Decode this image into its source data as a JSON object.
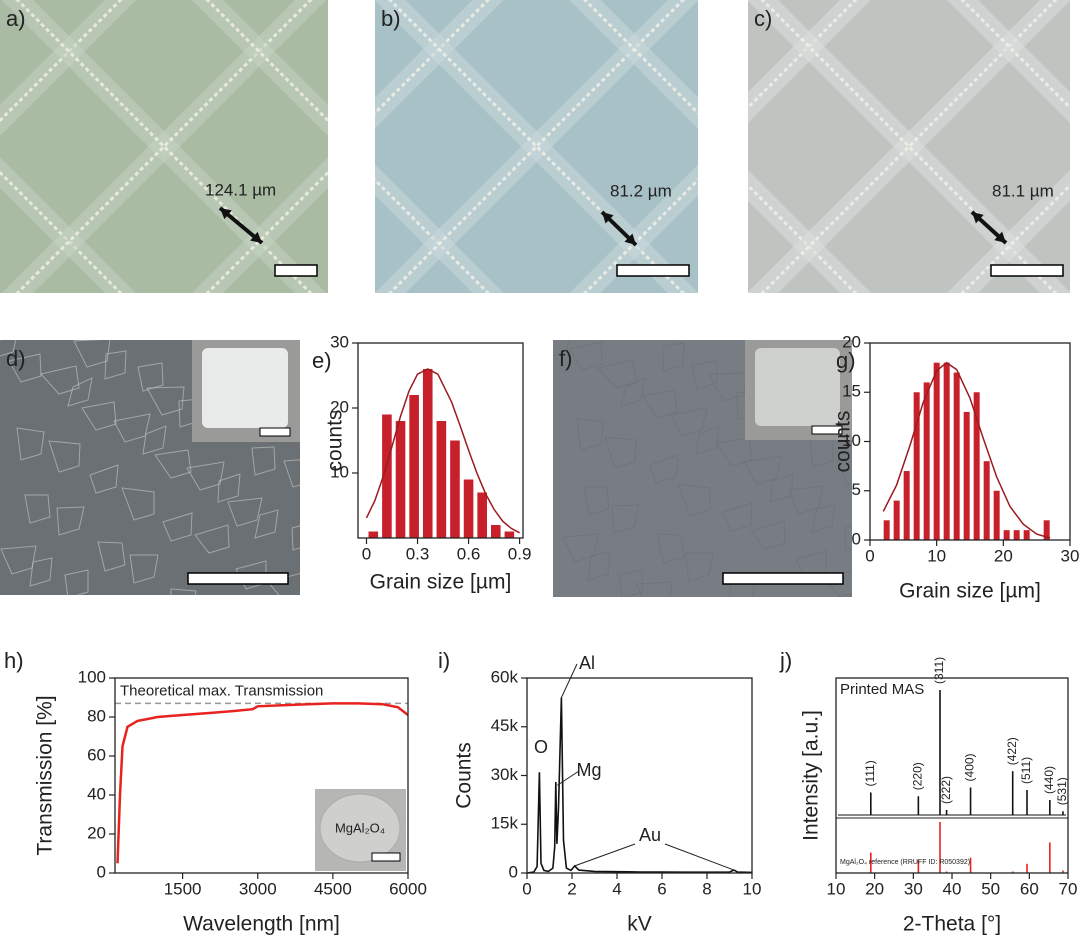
{
  "images": [
    {
      "label": "a)",
      "annotation": "124.1 µm"
    },
    {
      "label": "b)",
      "annotation": "81.2 µm"
    },
    {
      "label": "c)",
      "annotation": "81.1 µm"
    },
    {
      "label": "d)"
    },
    {
      "label": "f)"
    }
  ],
  "chart_data": [
    {
      "type": "histogram",
      "panel": "e)",
      "x_label": "Grain size [µm]",
      "y_label": "counts",
      "color": "#c8202a",
      "bins": [
        0,
        0.08,
        0.16,
        0.24,
        0.32,
        0.4,
        0.48,
        0.56,
        0.64,
        0.72,
        0.8,
        0.88
      ],
      "values": [
        1,
        19,
        18,
        22,
        26,
        18,
        15,
        9,
        7,
        2,
        1
      ],
      "curve": {
        "x": [
          0,
          0.05,
          0.1,
          0.15,
          0.2,
          0.25,
          0.3,
          0.36,
          0.42,
          0.5,
          0.55,
          0.6,
          0.65,
          0.7,
          0.75,
          0.8,
          0.85,
          0.9
        ],
        "values": [
          3.1,
          5.8,
          9.6,
          14.1,
          18.7,
          22.6,
          25.2,
          26,
          25.2,
          20.9,
          17.3,
          13.5,
          9.9,
          6.8,
          4.4,
          2.6,
          1.5,
          0.8
        ]
      },
      "xlim": [
        -0.05,
        0.92
      ],
      "xticks": [
        0,
        0.3,
        0.6,
        0.9
      ],
      "ylim": [
        0,
        30
      ],
      "yticks": [
        10,
        20,
        30
      ]
    },
    {
      "type": "histogram",
      "panel": "g)",
      "x_label": "Grain size [µm]",
      "y_label": "counts",
      "color": "#c8202a",
      "bins": [
        1.75,
        3.25,
        4.75,
        6.25,
        7.75,
        9.25,
        10.75,
        12.25,
        13.75,
        15.25,
        16.75,
        18.25,
        19.75,
        21.25,
        22.75,
        24.25,
        25.75,
        27.25
      ],
      "values": [
        2,
        4,
        7,
        15,
        16,
        18,
        18,
        17,
        13,
        15,
        8,
        5,
        1,
        1,
        1,
        0,
        2
      ],
      "curve": {
        "x": [
          2,
          4,
          6,
          8,
          10,
          11.5,
          13,
          15,
          17,
          19,
          21,
          23,
          25,
          27
        ],
        "values": [
          2.9,
          5.6,
          9.6,
          14,
          17.2,
          18,
          17.3,
          14.4,
          10.3,
          6.4,
          3.4,
          1.6,
          0.6,
          0.2
        ]
      },
      "xlim": [
        0,
        30
      ],
      "xticks": [
        0,
        10,
        20,
        30
      ],
      "ylim": [
        0,
        20
      ],
      "yticks": [
        0,
        5,
        10,
        15,
        20
      ]
    },
    {
      "type": "line",
      "panel": "h)",
      "x_label": "Wavelength [nm]",
      "y_label": "Transmission [%]",
      "reference": {
        "value": 87,
        "label": "Theoretical max. Transmission"
      },
      "inset": "MgAl₂O₄",
      "series": [
        {
          "color": "#e8231f",
          "x": [
            200,
            250,
            300,
            400,
            600,
            800,
            1000,
            1500,
            2000,
            2500,
            2900,
            3000,
            3500,
            4000,
            4500,
            5000,
            5500,
            5800,
            6000
          ],
          "values": [
            5,
            40,
            65,
            75,
            78,
            79,
            80,
            81,
            82,
            83,
            84,
            85.5,
            86,
            86.5,
            87,
            87,
            86.5,
            85,
            81
          ]
        }
      ],
      "xlim": [
        150,
        6000
      ],
      "xticks": [
        1500,
        3000,
        4500,
        6000
      ],
      "ylim": [
        0,
        100
      ],
      "yticks": [
        0,
        20,
        40,
        60,
        80,
        100
      ]
    },
    {
      "type": "line",
      "panel": "i)",
      "x_label": "kV",
      "y_label": "Counts",
      "annotations": [
        "O",
        "Al",
        "Mg",
        "Au"
      ],
      "series": [
        {
          "color": "#111111",
          "x": [
            0,
            0.1,
            0.3,
            0.45,
            0.55,
            0.62,
            0.75,
            0.95,
            1.15,
            1.23,
            1.28,
            1.33,
            1.4,
            1.53,
            1.62,
            1.75,
            1.95,
            2.12,
            2.3,
            3,
            4,
            5,
            6,
            7,
            8,
            9,
            9.2,
            9.35,
            10
          ],
          "values": [
            0,
            100,
            300,
            2000,
            31000,
            3000,
            800,
            500,
            1500,
            8000,
            28000,
            9000,
            20000,
            54000,
            10000,
            1500,
            800,
            2200,
            900,
            500,
            400,
            300,
            300,
            250,
            250,
            300,
            900,
            300,
            200
          ]
        }
      ],
      "xlim": [
        0,
        10
      ],
      "xticks": [
        0,
        2,
        4,
        6,
        8,
        10
      ],
      "ylim": [
        0,
        60000
      ],
      "yticks": [
        0,
        {
          "value": 15000,
          "label": "15k"
        },
        {
          "value": 30000,
          "label": "30k"
        },
        {
          "value": 45000,
          "label": "45k"
        },
        {
          "value": 60000,
          "label": "60k"
        }
      ]
    },
    {
      "type": "stick",
      "panel": "j)",
      "x_label": "2-Theta [°]",
      "y_label": "Intensity [a.u.]",
      "peak_labels": [
        "(111)",
        "(220)",
        "(311)",
        "(222)",
        "(400)",
        "(422)",
        "(511)",
        "(440)",
        "(531)"
      ],
      "series": [
        {
          "name": "Printed MAS",
          "color": "#111111",
          "x": [
            19,
            31.3,
            36.9,
            38.6,
            44.8,
            55.7,
            59.4,
            65.3,
            68.7
          ],
          "values": [
            18,
            15,
            100,
            4,
            22,
            35,
            20,
            12,
            3
          ]
        },
        {
          "name": "MgAl₂O₄ reference (RRUFF ID: R050392)",
          "color": "#e8231f",
          "x": [
            19,
            31.3,
            36.9,
            38.6,
            44.8,
            55.7,
            59.4,
            65.3,
            68.7
          ],
          "values": [
            40,
            25,
            100,
            3,
            30,
            3,
            18,
            60,
            5
          ]
        }
      ],
      "xlim": [
        10,
        70
      ],
      "xticks": [
        10,
        20,
        30,
        40,
        50,
        60,
        70
      ],
      "ylim": [
        0,
        100
      ]
    }
  ]
}
